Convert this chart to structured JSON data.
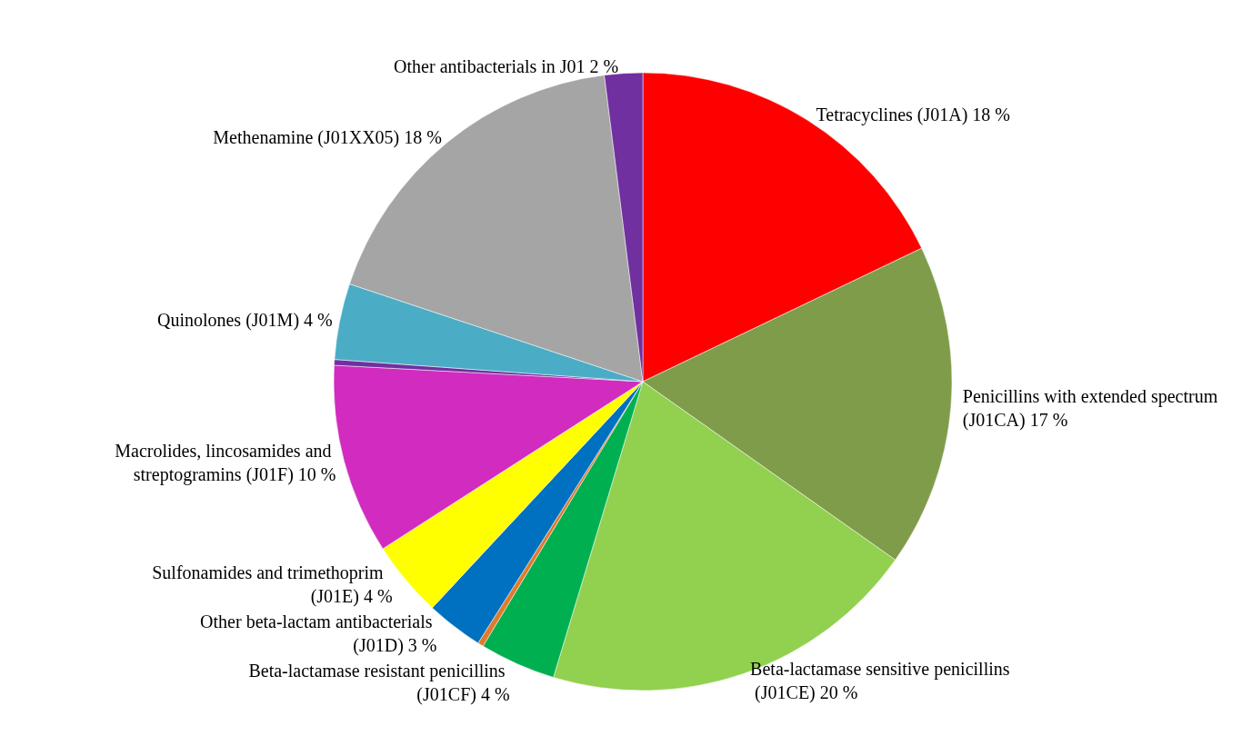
{
  "chart_data": {
    "type": "pie",
    "categories": [
      "Tetracyclines (J01A)",
      "Penicillins with extended spectrum (J01CA)",
      "Beta-lactamase sensitive penicillins (J01CE)",
      "Beta-lactamase resistant penicillins (J01CF)",
      null,
      "Other beta-lactam antibacterials (J01D)",
      "Sulfonamides and trimethoprim  (J01E)",
      "Macrolides, lincosamides and streptogramins (J01F)",
      null,
      "Quinolones (J01M)",
      "Methenamine (J01XX05)",
      "Other antibacterials in J01"
    ],
    "values": [
      18,
      17,
      20,
      4,
      0.3,
      3,
      4,
      10,
      0.3,
      4,
      18,
      2
    ],
    "value_labels": [
      "18 %",
      "17 %",
      "20 %",
      "4 %",
      null,
      "3 %",
      "4 %",
      "10 %",
      null,
      "4 %",
      "18 %",
      "2 %"
    ],
    "colors": [
      "#ff0000",
      "#7f9c4a",
      "#92d050",
      "#00b050",
      "#e07b2c",
      "#0070c0",
      "#ffff00",
      "#d22bbf",
      "#7030a0",
      "#4bacc6",
      "#a5a5a5",
      "#7030a0"
    ]
  }
}
